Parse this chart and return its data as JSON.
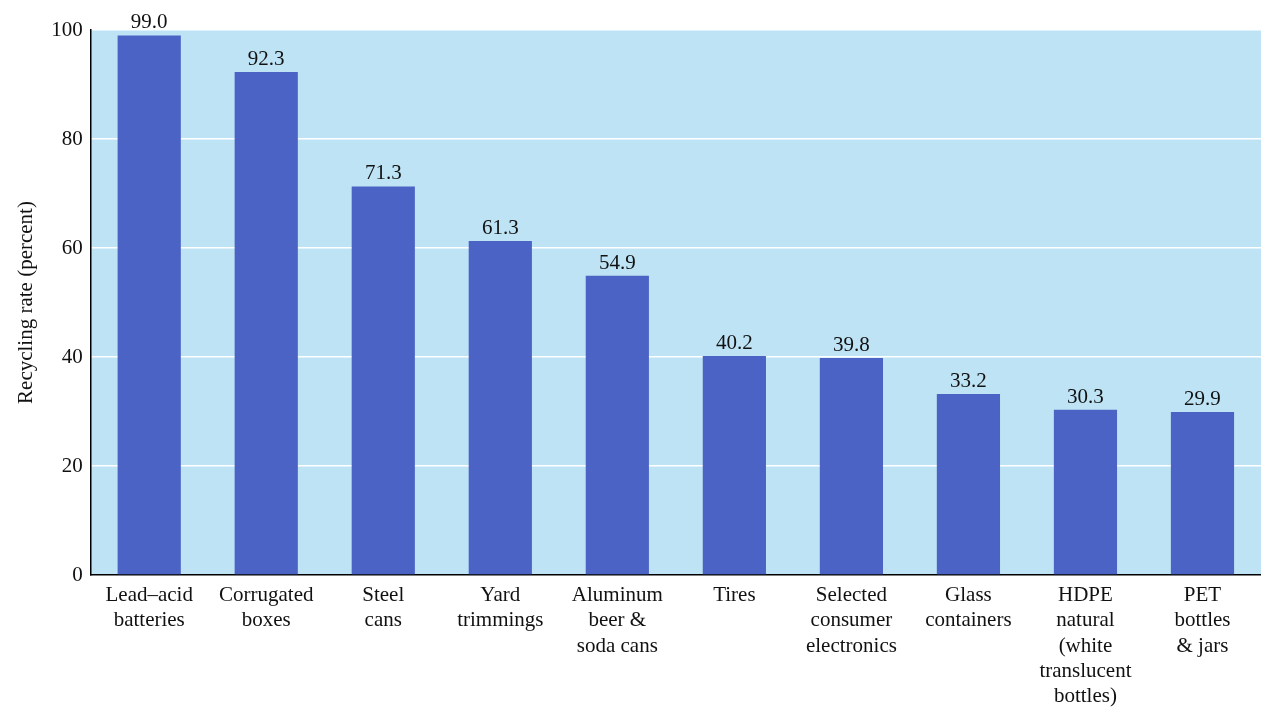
{
  "chart_data": {
    "type": "bar",
    "ylabel": "Recycling rate (percent)",
    "categories": [
      "Lead–acid\nbatteries",
      "Corrugated\nboxes",
      "Steel\ncans",
      "Yard\ntrimmings",
      "Aluminum\nbeer &\nsoda cans",
      "Tires",
      "Selected\nconsumer\nelectronics",
      "Glass\ncontainers",
      "HDPE\nnatural\n(white\ntranslucent\nbottles)",
      "PET\nbottles\n& jars"
    ],
    "values": [
      99.0,
      92.3,
      71.3,
      61.3,
      54.9,
      40.2,
      39.8,
      33.2,
      30.3,
      29.9
    ],
    "value_labels": [
      "99.0",
      "92.3",
      "71.3",
      "61.3",
      "54.9",
      "40.2",
      "39.8",
      "33.2",
      "30.3",
      "29.9"
    ],
    "color": "#4a63c4",
    "ylim": [
      0,
      100
    ],
    "yticks": [
      0,
      20,
      40,
      60,
      80,
      100
    ],
    "grid": "y",
    "legend": false
  }
}
